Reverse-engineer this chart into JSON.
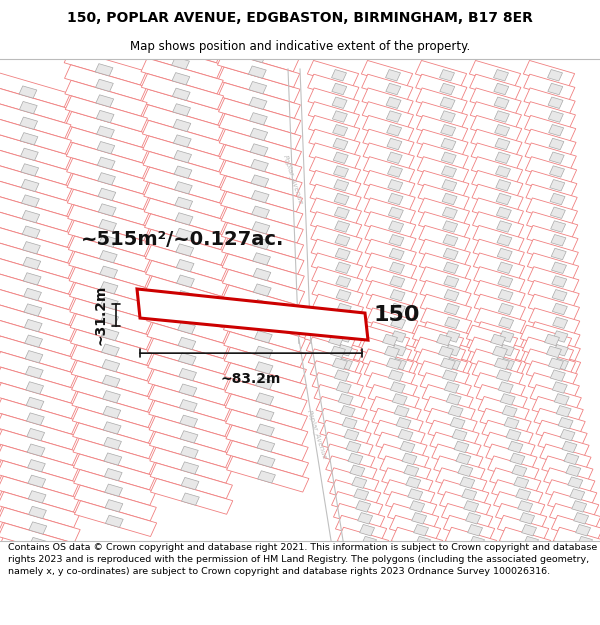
{
  "title_line1": "150, POPLAR AVENUE, EDGBASTON, BIRMINGHAM, B17 8ER",
  "title_line2": "Map shows position and indicative extent of the property.",
  "footer_text": "Contains OS data © Crown copyright and database right 2021. This information is subject to Crown copyright and database rights 2023 and is reproduced with the permission of HM Land Registry. The polygons (including the associated geometry, namely x, y co-ordinates) are subject to Crown copyright and database rights 2023 Ordnance Survey 100026316.",
  "background_color": "#ffffff",
  "plot_line_color": "#f08080",
  "plot_line_lw": 0.6,
  "building_fill": "#e8e8e8",
  "building_stroke": "#aaaaaa",
  "road_color": "#cccccc",
  "road_text_color": "#999999",
  "highlight_color": "#cc0000",
  "dim_line_color": "#000000",
  "area_label": "~515m²/~0.127ac.",
  "width_label": "~83.2m",
  "height_label": "~31.2m",
  "title_fontsize": 10,
  "subtitle_fontsize": 8.5,
  "footer_fontsize": 6.8,
  "area_fontsize": 14,
  "dim_fontsize": 10,
  "label_fontsize": 16
}
